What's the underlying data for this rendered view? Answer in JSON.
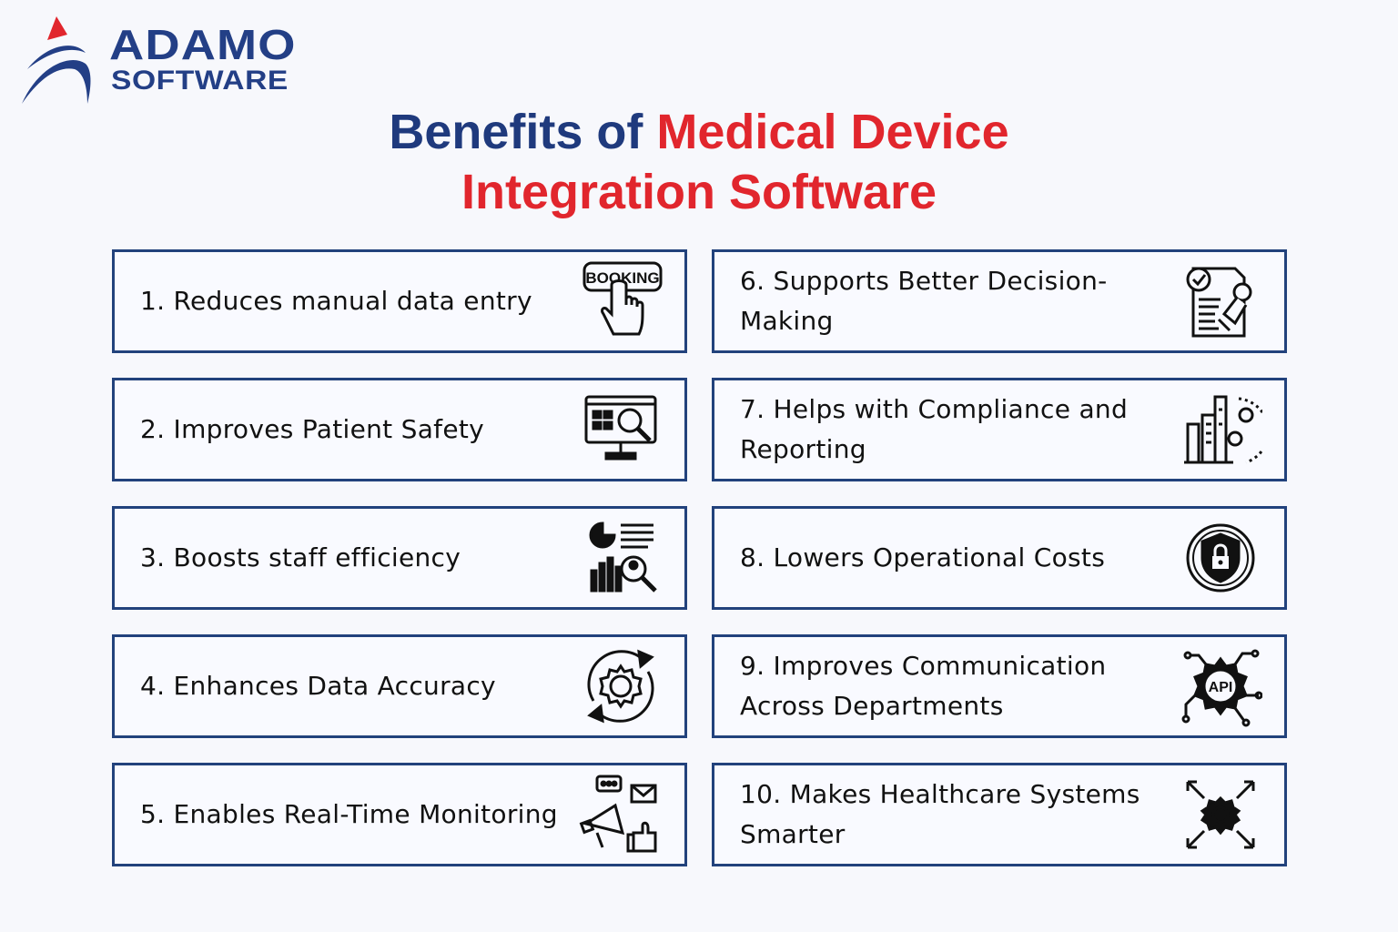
{
  "brand": {
    "name_line1": "ADAMO",
    "name_line2": "SOFTWARE",
    "navy": "#1f3a7d",
    "red": "#e1262d"
  },
  "title": {
    "part1": "Benefits of ",
    "part2": "Medical Device",
    "line2": "Integration Software"
  },
  "benefits": [
    {
      "label": "1. Reduces manual data entry",
      "icon": "booking-hand-icon",
      "icon_text": "BOOKING"
    },
    {
      "label": "2. Improves Patient Safety",
      "icon": "monitor-search-icon"
    },
    {
      "label": "3. Boosts staff efficiency",
      "icon": "analytics-search-icon"
    },
    {
      "label": "4. Enhances Data Accuracy",
      "icon": "gear-refresh-icon"
    },
    {
      "label": "5. Enables Real-Time Monitoring",
      "icon": "megaphone-feedback-icon"
    },
    {
      "label": "6. Supports Better Decision-Making",
      "icon": "document-approval-icon"
    },
    {
      "label": "7. Helps with Compliance and Reporting",
      "icon": "building-gears-icon"
    },
    {
      "label": "8. Lowers Operational Costs",
      "icon": "shield-lock-icon"
    },
    {
      "label": "9. Improves Communication Across Departments",
      "icon": "api-gear-icon",
      "icon_text": "API"
    },
    {
      "label": "10. Makes Healthcare Systems Smarter",
      "icon": "gear-expand-icon"
    }
  ]
}
